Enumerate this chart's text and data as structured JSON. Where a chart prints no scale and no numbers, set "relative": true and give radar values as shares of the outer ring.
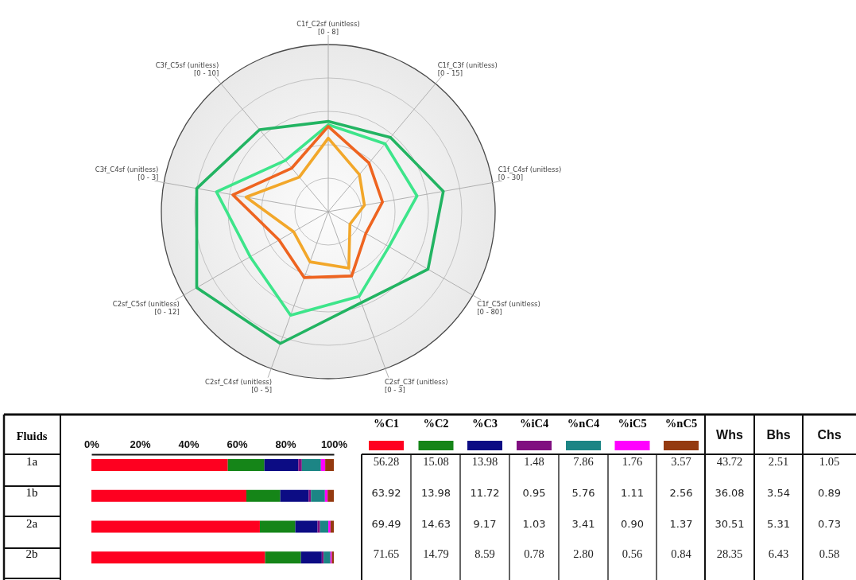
{
  "chart_data": [
    {
      "type": "radar",
      "relative": true,
      "grid": true,
      "categories": [
        "C1f_C2sf (unitless)\n[0 - 8]",
        "C1f_C3f (unitless)\n[0 - 15]",
        "C1f_C4sf (unitless)\n[0 - 30]",
        "C1f_C5sf (unitless)\n[0 - 80]",
        "C2sf_C3f (unitless)\n[0 - 3]",
        "C2sf_C4sf (unitless)\n[0 - 5]",
        "C2sf_C5sf (unitless)\n[0 - 12]",
        "C3f_C4sf (unitless)\n[0 - 3]",
        "C3f_C5sf (unitless)\n[0 - 10]"
      ],
      "series": [
        {
          "color": "#22b462",
          "values": [
            0.54,
            0.58,
            0.7,
            0.69,
            0.58,
            0.84,
            0.91,
            0.8,
            0.64
          ]
        },
        {
          "color": "#3de58a",
          "values": [
            0.52,
            0.53,
            0.54,
            0.42,
            0.54,
            0.66,
            0.54,
            0.68,
            0.4
          ]
        },
        {
          "color": "#ee6420",
          "values": [
            0.51,
            0.38,
            0.33,
            0.26,
            0.41,
            0.42,
            0.34,
            0.58,
            0.34
          ]
        },
        {
          "color": "#f2a72a",
          "values": [
            0.44,
            0.29,
            0.22,
            0.15,
            0.36,
            0.32,
            0.24,
            0.5,
            0.27
          ]
        }
      ]
    },
    {
      "type": "bar",
      "orientation": "horizontal",
      "stacked": true,
      "ylabel": "Fluids",
      "legend": "top right",
      "categories": [
        "1a",
        "1b",
        "2a",
        "2b"
      ],
      "xlim": [
        0,
        100
      ],
      "xticks": [
        {
          "value": 0,
          "label": "0%"
        },
        {
          "value": 20,
          "label": "20%"
        },
        {
          "value": 40,
          "label": "40%"
        },
        {
          "value": 60,
          "label": "60%"
        },
        {
          "value": 80,
          "label": "80%"
        },
        {
          "value": 100,
          "label": "100%"
        }
      ],
      "series": [
        {
          "name": "%C1",
          "color": "#fe0020",
          "values": [
            56.28,
            63.92,
            69.49,
            71.65
          ],
          "value_labels": [
            "56.28",
            "63.92",
            "69.49",
            "71.65"
          ]
        },
        {
          "name": "%C2",
          "color": "#158518",
          "values": [
            15.08,
            13.98,
            14.63,
            14.79
          ],
          "value_labels": [
            "15.08",
            "13.98",
            "14.63",
            "14.79"
          ]
        },
        {
          "name": "%C3",
          "color": "#0c0c84",
          "values": [
            13.98,
            11.72,
            9.17,
            8.59
          ],
          "value_labels": [
            "13.98",
            "11.72",
            "9.17",
            "8.59"
          ]
        },
        {
          "name": "%iC4",
          "color": "#800f80",
          "values": [
            1.48,
            0.95,
            1.03,
            0.78
          ],
          "value_labels": [
            "1.48",
            "0.95",
            "1.03",
            "0.78"
          ]
        },
        {
          "name": "%nC4",
          "color": "#1c8585",
          "values": [
            7.86,
            5.76,
            3.41,
            2.8
          ],
          "value_labels": [
            "7.86",
            "5.76",
            "3.41",
            "2.80"
          ]
        },
        {
          "name": "%iC5",
          "color": "#ff00ff",
          "values": [
            1.76,
            1.11,
            0.9,
            0.56
          ],
          "value_labels": [
            "1.76",
            "1.11",
            "0.90",
            "0.56"
          ]
        },
        {
          "name": "%nC5",
          "color": "#943a10",
          "values": [
            3.57,
            2.56,
            1.37,
            0.84
          ],
          "value_labels": [
            "3.57",
            "2.56",
            "1.37",
            "0.84"
          ]
        }
      ]
    },
    {
      "type": "other",
      "annotations": [
        "Whs",
        "Bhs",
        "Chs",
        "43.72",
        "2.51",
        "1.05",
        "36.08",
        "3.54",
        "0.89",
        "30.51",
        "5.31",
        "0.73",
        "28.35",
        "6.43",
        "0.58"
      ]
    }
  ]
}
